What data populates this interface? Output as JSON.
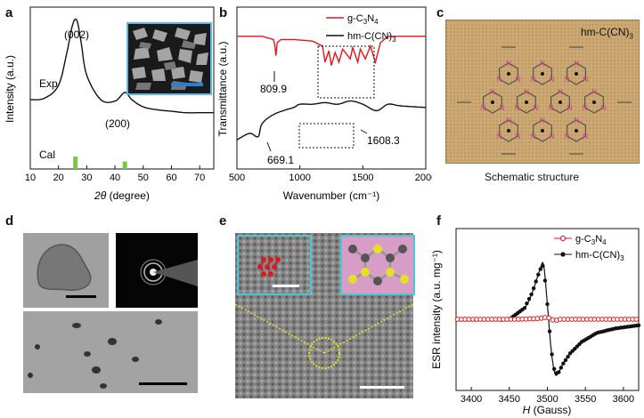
{
  "panels": {
    "a": {
      "letter": "a",
      "ylabel": "Intensity (a.u.)",
      "xlabel_italic": "2θ",
      "xlabel_rest": " (degree)",
      "curve_labels": {
        "exp": "Exp",
        "cal": "Cal"
      },
      "peak_labels": [
        "(002)",
        "(200)"
      ],
      "x_ticks": [
        "10",
        "20",
        "30",
        "40",
        "50",
        "60",
        "70"
      ]
    },
    "b": {
      "letter": "b",
      "ylabel": "Transmittance (a.u.)",
      "xlabel": "Wavenumber (cm⁻¹)",
      "legend": [
        {
          "main": "g-C",
          "sub1": "3",
          "mid": "N",
          "sub2": "4",
          "end": "",
          "color": "#e8141b"
        },
        {
          "main": "hm-C(CN)",
          "sub1": "3",
          "mid": "",
          "sub2": "",
          "end": "",
          "color": "#111111"
        }
      ],
      "annotations": [
        "809.9",
        "669.1",
        "1608.3"
      ],
      "x_ticks": [
        "500",
        "1000",
        "1500",
        "2000"
      ]
    },
    "c": {
      "letter": "c",
      "title_main": "hm-C(CN)",
      "title_sub": "3",
      "node_label": "N",
      "caption": "Schematic structure"
    },
    "d": {
      "letter": "d"
    },
    "e": {
      "letter": "e"
    },
    "f": {
      "letter": "f",
      "ylabel": "ESR intensity (a.u. mg⁻¹)",
      "xlabel_italic": "H",
      "xlabel_rest": " (Gauss)",
      "legend": [
        {
          "main": "g-C",
          "sub1": "3",
          "mid": "N",
          "sub2": "4",
          "color": "#e8141b"
        },
        {
          "main": "hm-C(CN)",
          "sub1": "3",
          "mid": "",
          "sub2": "",
          "color": "#111111"
        }
      ],
      "x_ticks": [
        "3400",
        "3450",
        "3500",
        "3550",
        "3600"
      ]
    }
  },
  "chart_data": [
    {
      "type": "line",
      "panel": "a",
      "xlabel": "2θ (degree)",
      "ylabel": "Intensity (a.u.)",
      "xlim": [
        10,
        75
      ],
      "series": [
        {
          "name": "Exp",
          "x": [
            10,
            15,
            20,
            23,
            25,
            26.5,
            28,
            30,
            35,
            40,
            43.5,
            46,
            50,
            55,
            60,
            65,
            70,
            75
          ],
          "y": [
            0.45,
            0.46,
            0.55,
            0.78,
            0.97,
            1.0,
            0.85,
            0.62,
            0.45,
            0.44,
            0.5,
            0.45,
            0.4,
            0.38,
            0.37,
            0.36,
            0.36,
            0.36
          ]
        },
        {
          "name": "Cal",
          "x": [
            26.0,
            43.5
          ],
          "y": [
            0.1,
            0.06
          ]
        }
      ],
      "peaks": [
        {
          "label": "(002)",
          "x": 26.5
        },
        {
          "label": "(200)",
          "x": 43.5
        }
      ]
    },
    {
      "type": "line",
      "panel": "b",
      "xlabel": "Wavenumber (cm⁻¹)",
      "ylabel": "Transmittance (a.u.)",
      "xlim": [
        500,
        2000
      ],
      "series": [
        {
          "name": "g-C3N4",
          "x": [
            500,
            700,
            790,
            800,
            810,
            820,
            850,
            950,
            1100,
            1180,
            1200,
            1230,
            1250,
            1280,
            1310,
            1340,
            1400,
            1420,
            1460,
            1480,
            1520,
            1560,
            1600,
            1640,
            1700,
            2000
          ],
          "y": [
            0.82,
            0.82,
            0.8,
            0.77,
            0.7,
            0.78,
            0.8,
            0.8,
            0.79,
            0.76,
            0.66,
            0.73,
            0.64,
            0.72,
            0.66,
            0.74,
            0.68,
            0.75,
            0.66,
            0.74,
            0.68,
            0.76,
            0.66,
            0.78,
            0.82,
            0.82
          ]
        },
        {
          "name": "hm-C(CN)3",
          "x": [
            500,
            600,
            669.1,
            700,
            800,
            950,
            1000,
            1100,
            1200,
            1300,
            1400,
            1500,
            1608.3,
            1700,
            1800,
            2000
          ],
          "y": [
            0.18,
            0.22,
            0.2,
            0.28,
            0.34,
            0.38,
            0.4,
            0.4,
            0.41,
            0.4,
            0.42,
            0.4,
            0.36,
            0.4,
            0.39,
            0.38
          ]
        }
      ],
      "annotations": [
        {
          "label": "809.9",
          "x": 809.9
        },
        {
          "label": "669.1",
          "x": 669.1
        },
        {
          "label": "1608.3",
          "x": 1608.3
        }
      ]
    },
    {
      "type": "line",
      "panel": "f",
      "xlabel": "H (Gauss)",
      "ylabel": "ESR intensity (a.u. mg⁻¹)",
      "xlim": [
        3380,
        3620
      ],
      "series": [
        {
          "name": "g-C3N4",
          "x": [
            3380,
            3420,
            3460,
            3490,
            3500,
            3505,
            3510,
            3515,
            3520,
            3560,
            3600,
            3620
          ],
          "y": [
            0.0,
            0.0,
            0.0,
            0.01,
            0.03,
            0.0,
            -0.02,
            0.0,
            0.0,
            0.0,
            0.0,
            0.0
          ]
        },
        {
          "name": "hm-C(CN)3",
          "x": [
            3380,
            3420,
            3450,
            3470,
            3480,
            3490,
            3495,
            3500,
            3505,
            3510,
            3515,
            3520,
            3530,
            3545,
            3565,
            3590,
            3620
          ],
          "y": [
            -0.02,
            -0.02,
            0.0,
            0.15,
            0.35,
            0.65,
            0.72,
            0.2,
            -0.4,
            -0.72,
            -0.7,
            -0.6,
            -0.45,
            -0.3,
            -0.18,
            -0.12,
            -0.08
          ]
        }
      ]
    }
  ]
}
